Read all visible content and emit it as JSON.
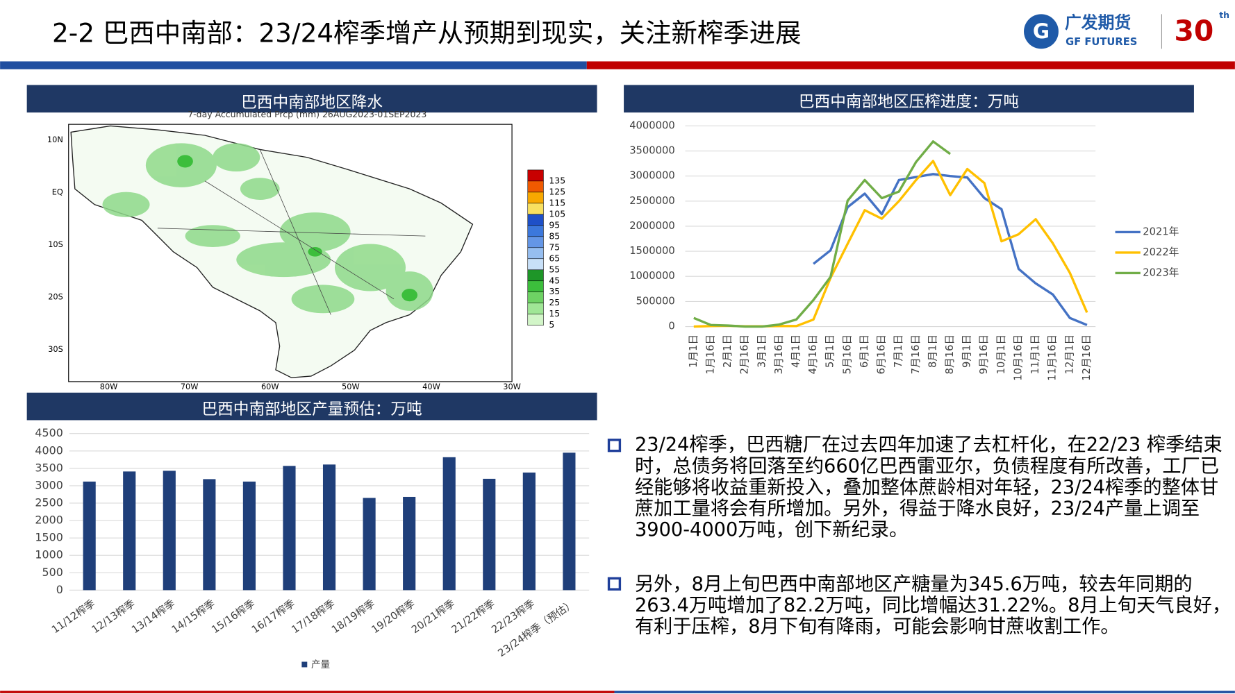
{
  "header": {
    "title": "2-2 巴西中南部：23/24榨季增产从预期到现实，关注新榨季进展",
    "logo": {
      "name": "广发期货",
      "english": "GF FUTURES",
      "anniversary": "30",
      "suffix": "th"
    }
  },
  "map": {
    "title": "巴西中南部地区降水",
    "subtitle": "7-day Accumulated Prcp (mm) 26AUG2023-01SEP2023",
    "legend_levels": [
      135,
      125,
      115,
      105,
      95,
      85,
      75,
      65,
      55,
      45,
      35,
      25,
      15,
      5
    ],
    "legend_colors": [
      "#c80000",
      "#f05a00",
      "#f8a800",
      "#f8e060",
      "#1e50c8",
      "#3c78dc",
      "#6496e6",
      "#96bef0",
      "#c8e0f8",
      "#1e9628",
      "#3cbe3c",
      "#6ed264",
      "#a0e696",
      "#d2f5c8"
    ],
    "lat_labels": [
      "10N",
      "EQ",
      "10S",
      "20S",
      "30S"
    ],
    "lon_labels": [
      "80W",
      "70W",
      "60W",
      "50W",
      "40W",
      "30W"
    ]
  },
  "chart_data": [
    {
      "type": "line",
      "title": "巴西中南部地区压榨进度：万吨",
      "categories": [
        "1月1日",
        "1月16日",
        "2月1日",
        "2月16日",
        "3月1日",
        "3月16日",
        "4月1日",
        "4月16日",
        "5月1日",
        "5月16日",
        "6月1日",
        "6月16日",
        "7月1日",
        "7月16日",
        "8月1日",
        "8月16日",
        "9月1日",
        "9月16日",
        "10月1日",
        "10月16日",
        "11月1日",
        "11月16日",
        "12月1日",
        "12月16日"
      ],
      "series": [
        {
          "name": "2021年",
          "color": "#4472c4",
          "values": [
            null,
            null,
            null,
            null,
            null,
            null,
            null,
            1250000,
            1520000,
            2380000,
            2650000,
            2240000,
            2920000,
            2980000,
            3040000,
            3000000,
            2970000,
            2560000,
            2340000,
            1150000,
            860000,
            640000,
            170000,
            30000
          ]
        },
        {
          "name": "2022年",
          "color": "#ffc000",
          "values": [
            0,
            10000,
            15000,
            5000,
            5000,
            10000,
            10000,
            140000,
            970000,
            1650000,
            2320000,
            2150000,
            2500000,
            2920000,
            3300000,
            2620000,
            3140000,
            2860000,
            1700000,
            1840000,
            2140000,
            1660000,
            1070000,
            280000
          ]
        },
        {
          "name": "2023年",
          "color": "#70ad47",
          "values": [
            170000,
            30000,
            20000,
            0,
            0,
            40000,
            140000,
            530000,
            990000,
            2510000,
            2920000,
            2560000,
            2690000,
            3280000,
            3690000,
            3440000,
            null,
            null,
            null,
            null,
            null,
            null,
            null,
            null
          ]
        }
      ],
      "ylim": [
        0,
        4000000
      ],
      "yticks": [
        0,
        500000,
        1000000,
        1500000,
        2000000,
        2500000,
        3000000,
        3500000,
        4000000
      ],
      "grid": true,
      "legend": "right"
    },
    {
      "type": "bar",
      "title": "巴西中南部地区产量预估：万吨",
      "categories": [
        "11/12榨季",
        "12/13榨季",
        "13/14榨季",
        "14/15榨季",
        "15/16榨季",
        "16/17榨季",
        "17/18榨季",
        "18/19榨季",
        "19/20榨季",
        "20/21榨季",
        "21/22榨季",
        "22/23榨季",
        "23/24榨季（预估）"
      ],
      "series": [
        {
          "name": "产量",
          "color": "#1f3f7a",
          "values": [
            3120,
            3410,
            3430,
            3190,
            3120,
            3570,
            3610,
            2650,
            2680,
            3820,
            3200,
            3380,
            3950
          ]
        }
      ],
      "ylim": [
        0,
        4500
      ],
      "yticks": [
        0,
        500,
        1000,
        1500,
        2000,
        2500,
        3000,
        3500,
        4000,
        4500
      ],
      "grid": true,
      "legend": "bottom"
    }
  ],
  "bullets": [
    "23/24榨季，巴西糖厂在过去四年加速了去杠杆化，在22/23 榨季结束时，总债务将回落至约660亿巴西雷亚尔，负债程度有所改善，工厂已经能够将收益重新投入，叠加整体蔗龄相对年轻，23/24榨季的整体甘蔗加工量将会有所增加。另外，得益于降水良好，23/24产量上调至3900-4000万吨，创下新纪录。",
    "另外，8月上旬巴西中南部地区产糖量为345.6万吨，较去年同期的263.4万吨增加了82.2万吨，同比增幅达31.22%。8月上旬天气良好，有利于压榨，8月下旬有降雨，可能会影响甘蔗收割工作。"
  ]
}
